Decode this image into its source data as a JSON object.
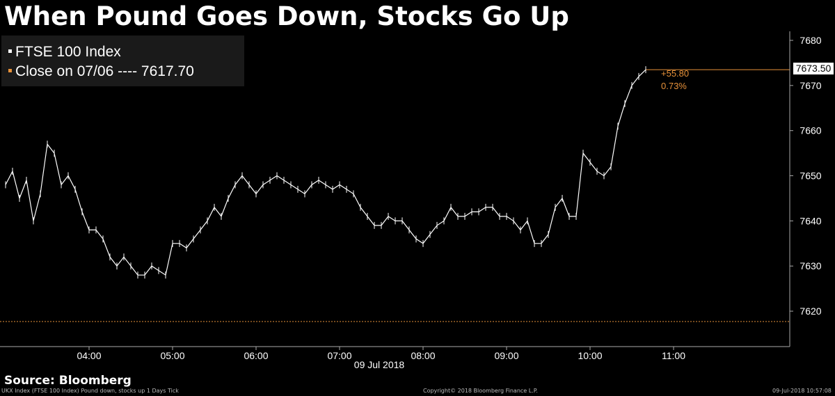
{
  "title": "When Pound Goes Down, Stocks Go Up",
  "legend": {
    "series_label": "FTSE 100 Index",
    "close_label": "Close on 07/06 ---- 7617.70",
    "series_color": "#ffffff",
    "close_color": "#e8923a"
  },
  "last_value_label": "7673.50",
  "change": {
    "abs": "+55.80",
    "pct": "0.73%"
  },
  "date_label": "09 Jul 2018",
  "source": "Source: Bloomberg",
  "footer": {
    "left": "UKX Index (FTSE 100 Index) Pound down, stocks up 1 Days  Tick",
    "center": "Copyright© 2018 Bloomberg Finance L.P.",
    "right": "09-Jul-2018 10:57:08"
  },
  "chart_data": {
    "type": "line",
    "title": "When Pound Goes Down, Stocks Go Up",
    "xlabel": "09 Jul 2018",
    "ylabel": "",
    "x_ticks": [
      "04:00",
      "05:00",
      "06:00",
      "07:00",
      "08:00",
      "09:00",
      "10:00",
      "11:00"
    ],
    "y_ticks": [
      7620,
      7630,
      7640,
      7650,
      7660,
      7670,
      7680
    ],
    "ylim": [
      7612,
      7682
    ],
    "grid": false,
    "legend_placement": "top-left",
    "reference_line": {
      "label": "Close on 07/06",
      "value": 7617.7
    },
    "series": [
      {
        "name": "FTSE 100 Index",
        "x": [
          "03:00",
          "03:05",
          "03:10",
          "03:15",
          "03:20",
          "03:25",
          "03:30",
          "03:35",
          "03:40",
          "03:45",
          "03:50",
          "03:55",
          "04:00",
          "04:05",
          "04:10",
          "04:15",
          "04:20",
          "04:25",
          "04:30",
          "04:35",
          "04:40",
          "04:45",
          "04:50",
          "04:55",
          "05:00",
          "05:05",
          "05:10",
          "05:15",
          "05:20",
          "05:25",
          "05:30",
          "05:35",
          "05:40",
          "05:45",
          "05:50",
          "05:55",
          "06:00",
          "06:05",
          "06:10",
          "06:15",
          "06:20",
          "06:25",
          "06:30",
          "06:35",
          "06:40",
          "06:45",
          "06:50",
          "06:55",
          "07:00",
          "07:05",
          "07:10",
          "07:15",
          "07:20",
          "07:25",
          "07:30",
          "07:35",
          "07:40",
          "07:45",
          "07:50",
          "07:55",
          "08:00",
          "08:05",
          "08:10",
          "08:15",
          "08:20",
          "08:25",
          "08:30",
          "08:35",
          "08:40",
          "08:45",
          "08:50",
          "08:55",
          "09:00",
          "09:05",
          "09:10",
          "09:15",
          "09:20",
          "09:25",
          "09:30",
          "09:35",
          "09:40",
          "09:45",
          "09:50",
          "09:55",
          "10:00",
          "10:05",
          "10:10",
          "10:15",
          "10:20",
          "10:25",
          "10:30",
          "10:35",
          "10:40"
        ],
        "values": [
          7648,
          7651,
          7645,
          7649,
          7640,
          7646,
          7657,
          7655,
          7648,
          7650,
          7647,
          7642,
          7638,
          7638,
          7636,
          7632,
          7630,
          7632,
          7630,
          7628,
          7628,
          7630,
          7629,
          7628,
          7635,
          7635,
          7634,
          7636,
          7638,
          7640,
          7643,
          7641,
          7645,
          7648,
          7650,
          7648,
          7646,
          7648,
          7649,
          7650,
          7649,
          7648,
          7647,
          7646,
          7648,
          7649,
          7648,
          7647,
          7648,
          7647,
          7646,
          7643,
          7641,
          7639,
          7639,
          7641,
          7640,
          7640,
          7638,
          7636,
          7635,
          7637,
          7639,
          7640,
          7643,
          7641,
          7641,
          7642,
          7642,
          7643,
          7643,
          7641,
          7641,
          7640,
          7638,
          7640,
          7635,
          7635,
          7637,
          7643,
          7645,
          7641,
          7641,
          7655,
          7653,
          7651,
          7650,
          7652,
          7661,
          7666,
          7670,
          7672,
          7673.5
        ]
      }
    ]
  }
}
